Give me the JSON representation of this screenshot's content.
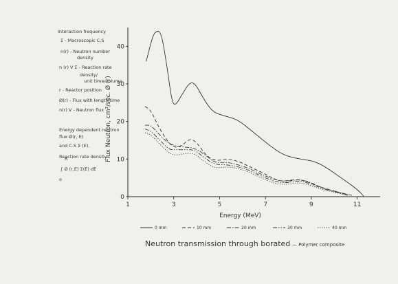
{
  "notes": {
    "lines": [
      "Interaction frequency",
      "Ʃ - Macroscopic C.S",
      "n(r) - Neutron number",
      "density",
      "n (r) V Ʃ - Reaction rate",
      "density/",
      "unit time/volume",
      "r - Reactor position",
      "Ø(r) - Flux with length time",
      "n(r) V - Neutron flux",
      "Energy dependent neutron",
      "flux Ø(r, E)",
      "and C.S Ʃ (E).",
      "Reaction rate density",
      "∫ Ø (r,E) Ʃ(E) dE",
      "R",
      "o"
    ]
  },
  "chart_data": {
    "type": "line",
    "xlabel": "Energy (MeV)",
    "ylabel": "Flux Neutron, cm²/sec. Ø (r)",
    "xlim": [
      1,
      12
    ],
    "ylim": [
      0,
      45
    ],
    "xticks": [
      1,
      3,
      5,
      7,
      9,
      11
    ],
    "yticks": [
      0,
      10,
      20,
      30,
      40
    ],
    "series": [
      {
        "name": "0mm",
        "dash": "solid",
        "points": [
          [
            1.8,
            36
          ],
          [
            2.05,
            42
          ],
          [
            2.2,
            44
          ],
          [
            2.45,
            44
          ],
          [
            2.7,
            35
          ],
          [
            2.9,
            26
          ],
          [
            3.05,
            24
          ],
          [
            3.35,
            27
          ],
          [
            3.7,
            30.5
          ],
          [
            3.95,
            30
          ],
          [
            4.3,
            26
          ],
          [
            4.7,
            22.5
          ],
          [
            5.2,
            21.5
          ],
          [
            5.8,
            20.5
          ],
          [
            6.5,
            17
          ],
          [
            7.2,
            13.5
          ],
          [
            7.8,
            11
          ],
          [
            8.5,
            10
          ],
          [
            9.1,
            9.5
          ],
          [
            9.6,
            8
          ],
          [
            10.3,
            5
          ],
          [
            11,
            2
          ],
          [
            11.3,
            0
          ]
        ]
      },
      {
        "name": "10mm",
        "dash": "dashed",
        "points": [
          [
            1.75,
            24
          ],
          [
            2.0,
            23
          ],
          [
            2.3,
            19
          ],
          [
            2.7,
            15
          ],
          [
            3.0,
            13
          ],
          [
            3.35,
            13.5
          ],
          [
            3.7,
            15.5
          ],
          [
            4.0,
            14.5
          ],
          [
            4.4,
            11
          ],
          [
            4.8,
            9.5
          ],
          [
            5.3,
            10
          ],
          [
            5.8,
            9.5
          ],
          [
            6.3,
            8
          ],
          [
            7.0,
            6
          ],
          [
            7.6,
            4
          ],
          [
            8.2,
            4.5
          ],
          [
            8.6,
            4.5
          ],
          [
            9.2,
            3
          ],
          [
            9.8,
            1.8
          ],
          [
            10.3,
            1
          ],
          [
            10.8,
            0.3
          ]
        ]
      },
      {
        "name": "20mm",
        "dash": "dash-dot",
        "points": [
          [
            1.75,
            19
          ],
          [
            2.0,
            19
          ],
          [
            2.3,
            17
          ],
          [
            2.7,
            14.5
          ],
          [
            3.05,
            13.5
          ],
          [
            3.4,
            13.2
          ],
          [
            3.9,
            13
          ],
          [
            4.4,
            11
          ],
          [
            4.8,
            9
          ],
          [
            5.3,
            9.2
          ],
          [
            5.8,
            8.5
          ],
          [
            6.3,
            7.5
          ],
          [
            6.8,
            6
          ],
          [
            7.4,
            4.5
          ],
          [
            7.9,
            4
          ],
          [
            8.4,
            4.6
          ],
          [
            8.9,
            4
          ],
          [
            9.4,
            2.5
          ],
          [
            10.0,
            1.5
          ],
          [
            10.6,
            0.5
          ]
        ]
      },
      {
        "name": "30mm",
        "dash": "dash-dot-dot",
        "points": [
          [
            1.75,
            18
          ],
          [
            2.0,
            17.5
          ],
          [
            2.4,
            15
          ],
          [
            2.8,
            12.5
          ],
          [
            3.1,
            12.5
          ],
          [
            3.5,
            12.5
          ],
          [
            3.9,
            12.5
          ],
          [
            4.3,
            10.5
          ],
          [
            4.8,
            8.5
          ],
          [
            5.3,
            8.5
          ],
          [
            5.8,
            8
          ],
          [
            6.3,
            7
          ],
          [
            6.8,
            5.5
          ],
          [
            7.4,
            4
          ],
          [
            7.9,
            3.6
          ],
          [
            8.4,
            4.3
          ],
          [
            8.9,
            3.6
          ],
          [
            9.4,
            2.3
          ],
          [
            10.0,
            1.3
          ],
          [
            10.6,
            0.4
          ]
        ]
      },
      {
        "name": "40mm",
        "dash": "dotted",
        "points": [
          [
            1.75,
            17
          ],
          [
            2.0,
            16.5
          ],
          [
            2.4,
            14
          ],
          [
            2.8,
            11.5
          ],
          [
            3.1,
            11
          ],
          [
            3.5,
            11.5
          ],
          [
            3.9,
            11.5
          ],
          [
            4.3,
            9.5
          ],
          [
            4.8,
            7.5
          ],
          [
            5.3,
            8
          ],
          [
            5.8,
            7.5
          ],
          [
            6.3,
            6.5
          ],
          [
            6.8,
            5
          ],
          [
            7.4,
            3.5
          ],
          [
            7.9,
            3.2
          ],
          [
            8.4,
            3.8
          ],
          [
            8.9,
            3.2
          ],
          [
            9.4,
            2
          ],
          [
            10.0,
            1.2
          ],
          [
            10.6,
            0.3
          ]
        ]
      }
    ],
    "legend": [
      {
        "label": "0 mm",
        "dash": "solid"
      },
      {
        "label": "10 mm",
        "dash": "dashed"
      },
      {
        "label": "20 mm",
        "dash": "dash-dot"
      },
      {
        "label": "30 mm",
        "dash": "dash-dot-dot"
      },
      {
        "label": "40 mm",
        "dash": "dotted"
      }
    ],
    "caption": "Neutron transmission through borated",
    "caption_sub": "— Polymer composite"
  }
}
